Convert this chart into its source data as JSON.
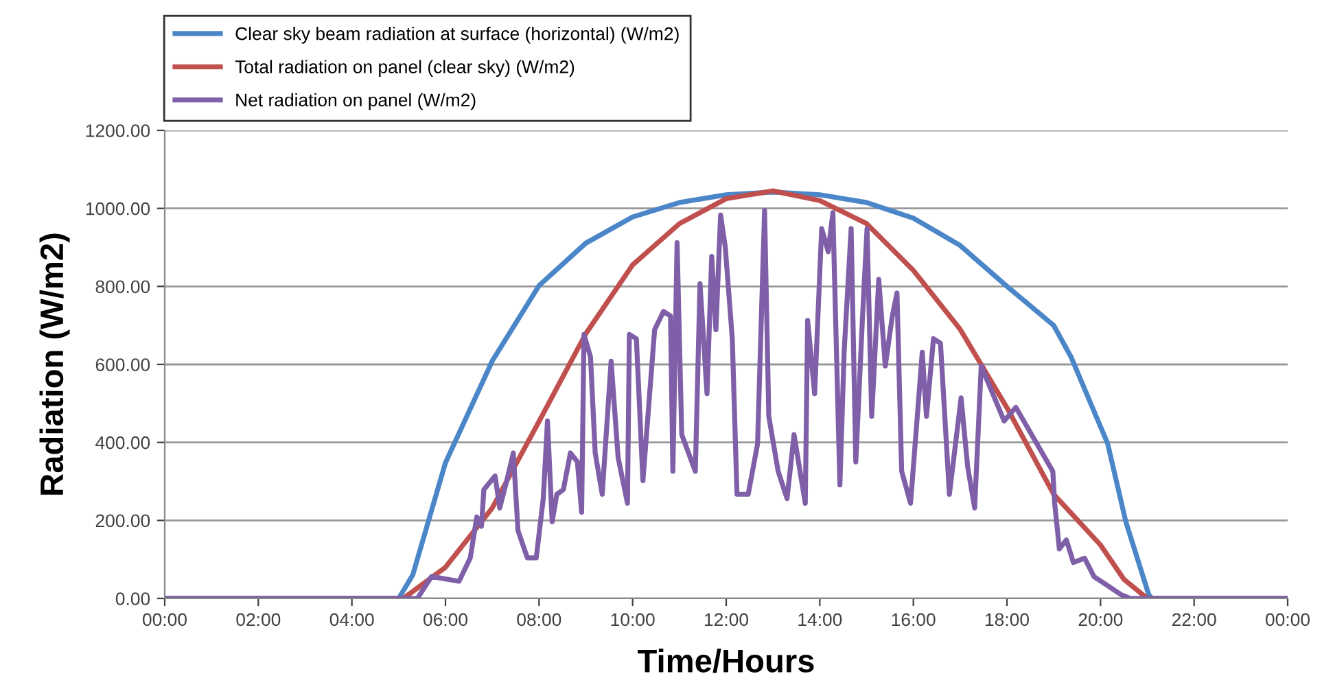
{
  "chart_data": {
    "type": "line",
    "xlabel": "Time/Hours",
    "ylabel": "Radiation (W/m2)",
    "xlim": [
      0,
      24
    ],
    "xticks": [
      {
        "value": 0,
        "label": "00:00"
      },
      {
        "value": 2,
        "label": "02:00"
      },
      {
        "value": 4,
        "label": "04:00"
      },
      {
        "value": 6,
        "label": "06:00"
      },
      {
        "value": 8,
        "label": "08:00"
      },
      {
        "value": 10,
        "label": "10:00"
      },
      {
        "value": 12,
        "label": "12:00"
      },
      {
        "value": 14,
        "label": "14:00"
      },
      {
        "value": 16,
        "label": "16:00"
      },
      {
        "value": 18,
        "label": "18:00"
      },
      {
        "value": 20,
        "label": "20:00"
      },
      {
        "value": 22,
        "label": "22:00"
      },
      {
        "value": 24,
        "label": "00:00"
      }
    ],
    "ylim": [
      0,
      1200
    ],
    "yticks": [
      {
        "value": 0,
        "label": "0.00"
      },
      {
        "value": 200,
        "label": "200.00"
      },
      {
        "value": 400,
        "label": "400.00"
      },
      {
        "value": 600,
        "label": "600.00"
      },
      {
        "value": 800,
        "label": "800.00"
      },
      {
        "value": 1000,
        "label": "1000.00"
      },
      {
        "value": 1200,
        "label": "1200.00"
      }
    ],
    "grid": "y",
    "legend": "top left",
    "marker": "none",
    "line_style": "solid",
    "series": [
      {
        "name": "Clear sky beam radiation at surface (horizontal) (W/m2)",
        "color": "#4a86c8",
        "x": [
          0,
          5.0,
          5.3,
          6,
          7,
          8,
          9,
          10,
          11,
          12,
          13,
          14,
          15,
          16,
          17,
          18,
          19,
          19.37,
          20.15,
          20.54,
          21.03,
          21.1,
          24
        ],
        "values": [
          0,
          0,
          60,
          348,
          609,
          802,
          911,
          978,
          1015,
          1035,
          1042,
          1035,
          1015,
          975,
          905,
          800,
          700,
          619,
          398,
          197,
          10,
          0,
          0
        ]
      },
      {
        "name": "Total radiation on panel (clear sky) (W/m2)",
        "color": "#c0504d",
        "x": [
          0,
          5.1,
          6,
          7,
          8,
          9,
          10,
          11,
          12,
          13,
          14,
          15,
          16,
          17,
          18,
          19,
          20,
          20.5,
          21.0,
          24
        ],
        "values": [
          0,
          0,
          80,
          232,
          454,
          679,
          855,
          961,
          1025,
          1045,
          1020,
          961,
          841,
          690,
          489,
          267,
          137,
          49,
          0,
          0
        ]
      },
      {
        "name": "Net radiation on panel (W/m2)",
        "color": "#7f5fa8",
        "x": [
          0,
          5.4,
          5.7,
          6.29,
          6.53,
          6.67,
          6.77,
          6.82,
          7.06,
          7.16,
          7.31,
          7.45,
          7.55,
          7.75,
          7.94,
          8.09,
          8.18,
          8.28,
          8.38,
          8.52,
          8.67,
          8.82,
          8.91,
          8.96,
          9.1,
          9.2,
          9.35,
          9.54,
          9.69,
          9.89,
          9.93,
          10.08,
          10.22,
          10.47,
          10.66,
          10.81,
          10.86,
          10.95,
          11.05,
          11.34,
          11.44,
          11.59,
          11.69,
          11.78,
          11.88,
          11.98,
          12.13,
          12.23,
          12.47,
          12.67,
          12.82,
          12.91,
          13.11,
          13.3,
          13.45,
          13.69,
          13.74,
          13.89,
          14.04,
          14.18,
          14.28,
          14.43,
          14.52,
          14.67,
          14.77,
          14.91,
          15.01,
          15.11,
          15.26,
          15.4,
          15.55,
          15.65,
          15.75,
          15.94,
          16.19,
          16.28,
          16.43,
          16.58,
          16.77,
          17.02,
          17.16,
          17.31,
          17.45,
          17.94,
          18.19,
          18.98,
          19.02,
          19.12,
          19.27,
          19.42,
          19.66,
          19.86,
          20.15,
          20.45,
          20.64,
          24
        ],
        "values": [
          0,
          0,
          56,
          44,
          104,
          209,
          185,
          279,
          314,
          232,
          302,
          373,
          174,
          104,
          104,
          256,
          455,
          197,
          267,
          279,
          373,
          350,
          221,
          677,
          619,
          373,
          267,
          608,
          361,
          244,
          677,
          666,
          302,
          689,
          736,
          724,
          326,
          912,
          420,
          326,
          807,
          525,
          877,
          689,
          983,
          901,
          666,
          267,
          267,
          396,
          995,
          467,
          326,
          256,
          420,
          244,
          713,
          525,
          948,
          889,
          989,
          291,
          631,
          948,
          350,
          713,
          948,
          467,
          818,
          596,
          724,
          783,
          326,
          244,
          631,
          467,
          666,
          654,
          267,
          514,
          338,
          232,
          596,
          455,
          490,
          326,
          244,
          127,
          150,
          92,
          103,
          56,
          33,
          9,
          0,
          0
        ]
      }
    ]
  }
}
